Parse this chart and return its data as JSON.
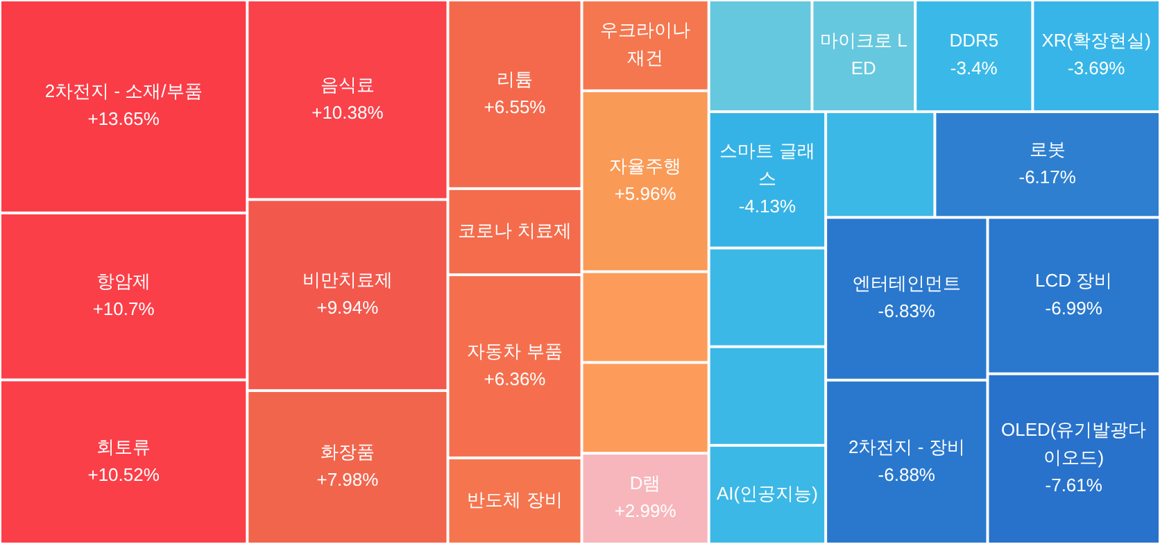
{
  "chart_data": {
    "type": "other",
    "categories": [
      "2차전지 - 소재/부품",
      "항암제",
      "회토류",
      "음식료",
      "비만치료제",
      "화장품",
      "리튬",
      "코로나 치료제",
      "자동차 부품",
      "반도체 장비",
      "우크라이나 재건",
      "자율주행",
      null,
      null,
      "D램",
      null,
      "마이크로 LED",
      "DDR5",
      "XR(확장현실)",
      "스마트 글래스",
      null,
      null,
      "AI(인공지능)",
      null,
      "로봇",
      "엔터테인먼트",
      "2차전지 - 장비",
      "LCD 장비",
      "OLED(유기발광다이오드)"
    ],
    "values": [
      13.65,
      10.7,
      10.52,
      10.38,
      9.94,
      7.98,
      6.55,
      null,
      6.36,
      null,
      null,
      5.96,
      null,
      null,
      2.99,
      null,
      null,
      -3.4,
      -3.69,
      -4.13,
      null,
      null,
      null,
      null,
      -6.17,
      -6.83,
      -6.88,
      -6.99,
      -7.61
    ],
    "value_labels": [
      "+13.65%",
      "+10.7%",
      "+10.52%",
      "+10.38%",
      "+9.94%",
      "+7.98%",
      "+6.55%",
      null,
      "+6.36%",
      null,
      null,
      "+5.96%",
      null,
      null,
      "+2.99%",
      null,
      null,
      "-3.4%",
      "-3.69%",
      "-4.13%",
      null,
      null,
      null,
      null,
      "-6.17%",
      "-6.83%",
      "-6.88%",
      "-6.99%",
      "-7.61%"
    ],
    "colors": [
      "#fa3c47",
      "#fa3f48",
      "#fa3f48",
      "#f9424a",
      "#f3584d",
      "#f2654d",
      "#f4694c",
      "#f46c4c",
      "#f56f4e",
      "#f5754f",
      "#f5774f",
      "#fa9a57",
      "#fd9c5a",
      "#fd9c5a",
      "#f7b6bc",
      "#66c8de",
      "#66c8de",
      "#3ab9e8",
      "#37b5e8",
      "#35b3e6",
      "#3cb8e6",
      "#3cb8e6",
      "#3cb8e6",
      "#3cb8e6",
      "#2e7fd0",
      "#2a78cd",
      "#2a78cd",
      "#2a78cd",
      "#2872cb"
    ]
  }
}
